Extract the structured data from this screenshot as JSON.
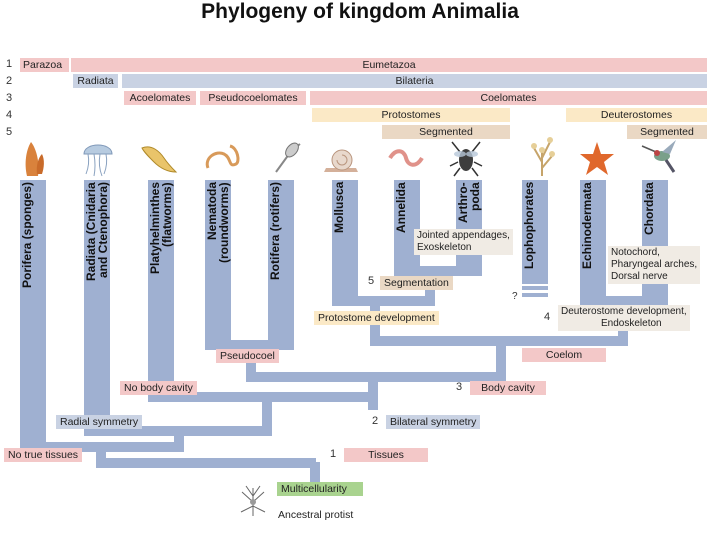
{
  "title": "Phylogeny of kingdom Animalia",
  "header_rows": {
    "numbers": [
      "1",
      "2",
      "3",
      "4",
      "5"
    ],
    "row1": [
      "Parazoa",
      "Eumetazoa"
    ],
    "row2": [
      "Radiata",
      "Bilateria"
    ],
    "row3": [
      "Acoelomates",
      "Pseudocoelomates",
      "Coelomates"
    ],
    "row4": [
      "Protostomes",
      "Deuterostomes"
    ],
    "row5": [
      "Segmented",
      "Segmented"
    ]
  },
  "groups": [
    {
      "name": "Porifera (sponges)",
      "icon": "sponge-icon"
    },
    {
      "name": "Radiata (Cnidaria and Ctenophora)",
      "icon": "jellyfish-icon"
    },
    {
      "name": "Platyhelminthes (flatworms)",
      "icon": "flatworm-icon"
    },
    {
      "name": "Nematoda (roundworms)",
      "icon": "roundworm-icon"
    },
    {
      "name": "Rotifera (rotifers)",
      "icon": "rotifer-icon"
    },
    {
      "name": "Mollusca",
      "icon": "snail-icon"
    },
    {
      "name": "Annelida",
      "icon": "annelid-icon"
    },
    {
      "name": "Arthro-poda",
      "icon": "insect-icon"
    },
    {
      "name": "Lophophorates",
      "icon": "bryozoan-icon"
    },
    {
      "name": "Echinodermata",
      "icon": "starfish-icon"
    },
    {
      "name": "Chordata",
      "icon": "hummingbird-icon"
    }
  ],
  "annotations": {
    "arthropoda": [
      "Jointed appendages,",
      "Exoskeleton"
    ],
    "chordata": [
      "Notochord,",
      "Pharyngeal arches,",
      "Dorsal nerve"
    ],
    "deuterostome": [
      "Deuterostome development,",
      "Endoskeleton"
    ]
  },
  "nodes": {
    "segmentation": {
      "num": "5",
      "label": "Segmentation"
    },
    "protostome": {
      "label": "Protostome development"
    },
    "question": "?",
    "deutero_num": "4",
    "pseudocoel": {
      "label": "Pseudocoel"
    },
    "coelom": {
      "label": "Coelom"
    },
    "no_body_cavity": {
      "label": "No body cavity"
    },
    "body_cavity": {
      "num": "3",
      "label": "Body cavity"
    },
    "radial": {
      "label": "Radial symmetry"
    },
    "bilateral": {
      "num": "2",
      "label": "Bilateral symmetry"
    },
    "no_true_tissues": {
      "label": "No true tissues"
    },
    "tissues": {
      "num": "1",
      "label": "Tissues"
    },
    "multicellularity": {
      "label": "Multicellularity"
    },
    "ancestral": {
      "label": "Ancestral protist",
      "icon": "protist-icon"
    }
  },
  "colors": {
    "branch": "#9fb0d1",
    "pink": "#f3c8c8",
    "blue": "#c9d2e3",
    "tan": "#fbe9c6",
    "beige": "#ead8c4",
    "green": "#a9d38f"
  }
}
